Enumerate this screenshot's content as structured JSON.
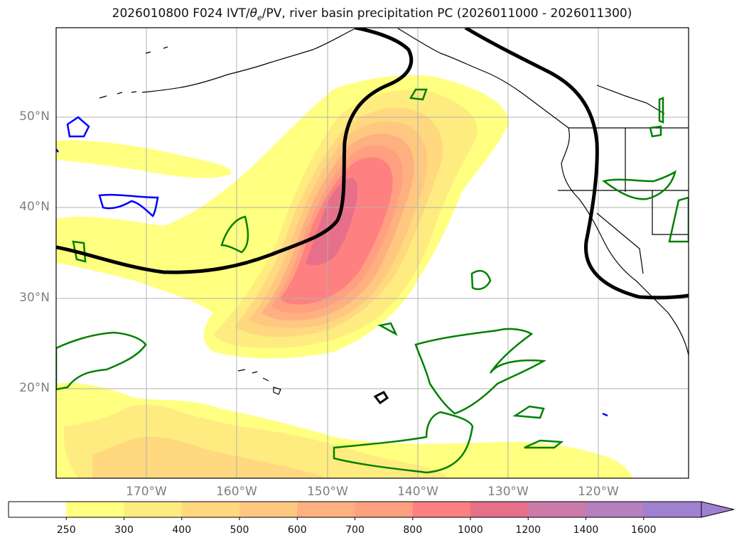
{
  "title": "2026010800 F024 IVT/θe/PV, river basin precipitation PC (2026011000 - 2026011300)",
  "title_parts": {
    "prefix": "2026010800 F024 IVT/",
    "theta": "θ",
    "sub": "e",
    "suffix": "/PV, river basin precipitation PC (2026011000 - 2026011300)"
  },
  "lat_labels": [
    "50°N",
    "40°N",
    "30°N",
    "20°N"
  ],
  "lon_labels": [
    "170°W",
    "160°W",
    "150°W",
    "140°W",
    "130°W",
    "120°W"
  ],
  "colorbar": {
    "ticks": [
      "250",
      "300",
      "400",
      "500",
      "600",
      "700",
      "800",
      "1000",
      "1200",
      "1400",
      "1600"
    ],
    "colors": [
      "#ffffff",
      "#ffff80",
      "#ffec80",
      "#ffd880",
      "#ffc880",
      "#ffb080",
      "#ffa080",
      "#ff8080",
      "#e6708a",
      "#cc7aaa",
      "#b480c0",
      "#a080d0"
    ]
  },
  "colors": {
    "pv_contour": "#008000",
    "theta_contour": "#0000ff",
    "ivt_line": "#000000",
    "grid": "#b0b0b0",
    "coast": "#000000"
  }
}
